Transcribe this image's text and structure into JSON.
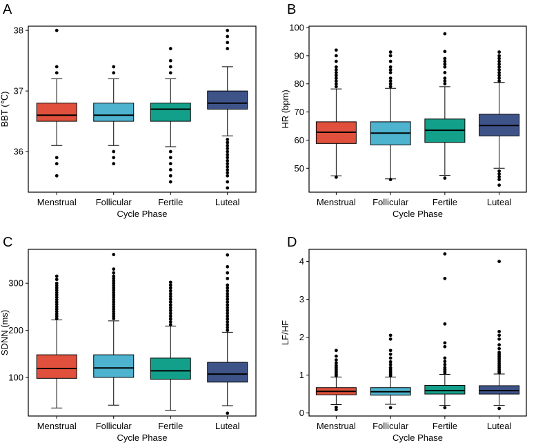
{
  "colors": {
    "menstrual": "#E0503C",
    "follicular": "#4DB3CE",
    "fertile": "#13A08A",
    "luteal": "#3E5489"
  },
  "chart_data": [
    {
      "panel": "A",
      "type": "box",
      "categories": [
        "Menstrual",
        "Follicular",
        "Fertile",
        "Luteal"
      ],
      "xlabel": "Cycle Phase",
      "ylabel": "BBT (℃)",
      "ylim": [
        35.33,
        38.07
      ],
      "yticks": [
        36,
        37,
        38
      ],
      "boxes": [
        {
          "q1": 36.5,
          "median": 36.6,
          "q3": 36.8,
          "whisker_low": 36.1,
          "whisker_high": 37.2,
          "outliers": [
            35.6,
            35.8,
            35.9,
            37.3,
            37.4,
            38.0
          ]
        },
        {
          "q1": 36.5,
          "median": 36.6,
          "q3": 36.8,
          "whisker_low": 36.1,
          "whisker_high": 37.2,
          "outliers": [
            35.8,
            35.9,
            36.0,
            37.3,
            37.4
          ]
        },
        {
          "q1": 36.5,
          "median": 36.7,
          "q3": 36.8,
          "whisker_low": 36.08,
          "whisker_high": 37.2,
          "outliers": [
            35.5,
            35.6,
            35.7,
            35.8,
            35.9,
            36.0,
            37.3,
            37.4,
            37.5,
            37.7
          ]
        },
        {
          "q1": 36.7,
          "median": 36.8,
          "q3": 37.0,
          "whisker_low": 36.26,
          "whisker_high": 37.4,
          "outliers": [
            35.4,
            35.5,
            35.6,
            35.65,
            35.7,
            35.75,
            35.8,
            35.85,
            35.9,
            35.95,
            36.0,
            36.05,
            36.1,
            36.15,
            36.2,
            37.7,
            37.8,
            37.9,
            38.0
          ]
        }
      ]
    },
    {
      "panel": "B",
      "type": "box",
      "categories": [
        "Menstrual",
        "Follicular",
        "Fertile",
        "Luteal"
      ],
      "xlabel": "Cycle Phase",
      "ylabel": "HR (bpm)",
      "ylim": [
        41.5,
        100.5
      ],
      "yticks": [
        50,
        60,
        70,
        80,
        90,
        100
      ],
      "boxes": [
        {
          "q1": 58.8,
          "median": 62.8,
          "q3": 66.5,
          "whisker_low": 47.3,
          "whisker_high": 78.2,
          "outliers": [
            46.8,
            79,
            80,
            81,
            82,
            83,
            84,
            85,
            86,
            88,
            90,
            92
          ]
        },
        {
          "q1": 58.3,
          "median": 62.5,
          "q3": 66.5,
          "whisker_low": 46.2,
          "whisker_high": 78.4,
          "outliers": [
            46.0,
            79,
            80,
            81,
            82,
            84,
            85,
            86,
            88,
            90,
            91.3
          ]
        },
        {
          "q1": 59.2,
          "median": 63.5,
          "q3": 67.5,
          "whisker_low": 47.5,
          "whisker_high": 79.0,
          "outliers": [
            46.5,
            80,
            81,
            82,
            84,
            86,
            87,
            88,
            89,
            91.5,
            97.8
          ]
        },
        {
          "q1": 61.5,
          "median": 65.2,
          "q3": 69.2,
          "whisker_low": 50.0,
          "whisker_high": 80.5,
          "outliers": [
            44.0,
            46,
            47,
            48,
            49,
            81,
            82,
            83,
            84,
            85,
            86,
            87,
            88,
            89,
            90,
            91.3
          ]
        }
      ]
    },
    {
      "panel": "C",
      "type": "box",
      "categories": [
        "Menstrual",
        "Follicular",
        "Fertile",
        "Luteal"
      ],
      "xlabel": "Cycle Phase",
      "ylabel": "SDNN (ms)",
      "ylim": [
        18,
        372
      ],
      "yticks": [
        100,
        200,
        300
      ],
      "boxes": [
        {
          "q1": 98,
          "median": 119,
          "q3": 148,
          "whisker_low": 35,
          "whisker_high": 222,
          "outliers": [
            225,
            230,
            235,
            240,
            245,
            250,
            255,
            260,
            265,
            270,
            275,
            280,
            285,
            290,
            295,
            300,
            308,
            315
          ]
        },
        {
          "q1": 100,
          "median": 120,
          "q3": 148,
          "whisker_low": 41,
          "whisker_high": 220,
          "outliers": [
            225,
            230,
            235,
            240,
            245,
            250,
            255,
            260,
            265,
            270,
            275,
            280,
            285,
            290,
            295,
            300,
            305,
            310,
            315,
            322,
            330,
            361
          ]
        },
        {
          "q1": 96,
          "median": 114,
          "q3": 141,
          "whisker_low": 30,
          "whisker_high": 209,
          "outliers": [
            212,
            218,
            224,
            230,
            236,
            242,
            248,
            254,
            260,
            266,
            272,
            278,
            284,
            290,
            296,
            302
          ]
        },
        {
          "q1": 90,
          "median": 107,
          "q3": 132,
          "whisker_low": 40,
          "whisker_high": 196,
          "outliers": [
            24,
            200,
            206,
            212,
            218,
            224,
            230,
            236,
            242,
            248,
            254,
            260,
            266,
            272,
            278,
            284,
            290,
            296,
            310,
            322,
            335,
            360
          ]
        }
      ]
    },
    {
      "panel": "D",
      "type": "box",
      "categories": [
        "Menstrual",
        "Follicular",
        "Fertile",
        "Luteal"
      ],
      "xlabel": "Cycle Phase",
      "ylabel": "LF/HF",
      "ylim": [
        -0.08,
        4.32
      ],
      "yticks": [
        0,
        1,
        2,
        3,
        4
      ],
      "boxes": [
        {
          "q1": 0.48,
          "median": 0.57,
          "q3": 0.67,
          "whisker_low": 0.22,
          "whisker_high": 0.95,
          "outliers": [
            0.09,
            0.15,
            0.98,
            1.02,
            1.06,
            1.1,
            1.15,
            1.2,
            1.25,
            1.32,
            1.4,
            1.5,
            1.65
          ]
        },
        {
          "q1": 0.47,
          "median": 0.56,
          "q3": 0.67,
          "whisker_low": 0.23,
          "whisker_high": 0.95,
          "outliers": [
            0.14,
            0.98,
            1.02,
            1.06,
            1.1,
            1.15,
            1.2,
            1.28,
            1.35,
            1.45,
            1.55,
            1.65,
            1.95,
            2.05
          ]
        },
        {
          "q1": 0.5,
          "median": 0.59,
          "q3": 0.73,
          "whisker_low": 0.2,
          "whisker_high": 1.02,
          "outliers": [
            0.14,
            1.05,
            1.1,
            1.15,
            1.2,
            1.28,
            1.36,
            1.45,
            1.75,
            1.85,
            2.35,
            3.55,
            4.2
          ]
        },
        {
          "q1": 0.5,
          "median": 0.59,
          "q3": 0.72,
          "whisker_low": 0.2,
          "whisker_high": 1.03,
          "outliers": [
            0.12,
            1.06,
            1.1,
            1.15,
            1.2,
            1.25,
            1.3,
            1.35,
            1.4,
            1.45,
            1.5,
            1.55,
            1.6,
            1.7,
            1.8,
            1.95,
            2.05,
            2.15,
            4.0
          ]
        }
      ]
    }
  ]
}
